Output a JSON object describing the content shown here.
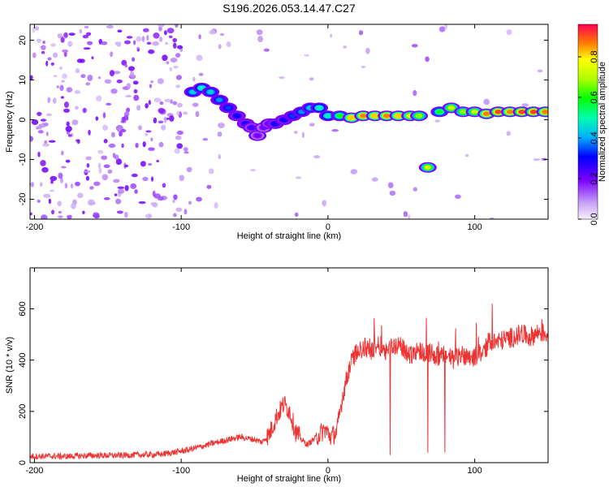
{
  "title": "S196.2026.053.14.47.C27",
  "chart_data": [
    {
      "type": "heatmap",
      "name": "spectrogram",
      "xlabel": "Height of straight line (km)",
      "ylabel": "Frequency (Hz)",
      "xlim": [
        -203,
        150
      ],
      "ylim": [
        -25,
        24
      ],
      "xticks": [
        -200,
        -100,
        0,
        100
      ],
      "yticks": [
        20,
        10,
        0,
        -10,
        -20
      ],
      "colorbar": {
        "label": "Normalized spectral amplitude",
        "range": [
          0,
          0.96
        ],
        "ticks": [
          0.0,
          0.2,
          0.4,
          0.6,
          0.8
        ]
      },
      "ridge": [
        {
          "x": -92,
          "y": 7
        },
        {
          "x": -86,
          "y": 8
        },
        {
          "x": -80,
          "y": 7
        },
        {
          "x": -74,
          "y": 5
        },
        {
          "x": -68,
          "y": 3
        },
        {
          "x": -62,
          "y": 1
        },
        {
          "x": -56,
          "y": -1
        },
        {
          "x": -52,
          "y": -2
        },
        {
          "x": -48,
          "y": -4
        },
        {
          "x": -44,
          "y": -2
        },
        {
          "x": -40,
          "y": -1
        },
        {
          "x": -36,
          "y": -1
        },
        {
          "x": -30,
          "y": 0
        },
        {
          "x": -24,
          "y": 1
        },
        {
          "x": -18,
          "y": 2
        },
        {
          "x": -12,
          "y": 3
        },
        {
          "x": -6,
          "y": 3
        },
        {
          "x": 0,
          "y": 1
        },
        {
          "x": 8,
          "y": 1
        },
        {
          "x": 16,
          "y": 0.5
        },
        {
          "x": 24,
          "y": 1
        },
        {
          "x": 32,
          "y": 1
        },
        {
          "x": 40,
          "y": 1
        },
        {
          "x": 48,
          "y": 1
        },
        {
          "x": 56,
          "y": 1
        },
        {
          "x": 62,
          "y": 1
        },
        {
          "x": 68,
          "y": -12
        },
        {
          "x": 76,
          "y": 2
        },
        {
          "x": 84,
          "y": 3
        },
        {
          "x": 92,
          "y": 2
        },
        {
          "x": 100,
          "y": 2
        },
        {
          "x": 108,
          "y": 1.5
        },
        {
          "x": 116,
          "y": 2
        },
        {
          "x": 124,
          "y": 2
        },
        {
          "x": 132,
          "y": 2
        },
        {
          "x": 140,
          "y": 2
        },
        {
          "x": 148,
          "y": 2
        }
      ],
      "ridge_amplitude": [
        0.45,
        0.5,
        0.45,
        0.4,
        0.35,
        0.3,
        0.3,
        0.25,
        0.2,
        0.2,
        0.25,
        0.3,
        0.3,
        0.35,
        0.4,
        0.45,
        0.5,
        0.5,
        0.6,
        0.85,
        0.9,
        0.85,
        0.9,
        0.85,
        0.8,
        0.7,
        0.75,
        0.6,
        0.75,
        0.7,
        0.75,
        0.9,
        0.95,
        0.9,
        0.95,
        0.95,
        0.9
      ]
    },
    {
      "type": "line",
      "name": "snr",
      "xlabel": "Height of straight line (km)",
      "ylabel": "SNR (10 * v/v)",
      "xlim": [
        -203,
        150
      ],
      "ylim": [
        0,
        760
      ],
      "xticks": [
        -200,
        -100,
        0,
        100
      ],
      "yticks": [
        0,
        200,
        400,
        600
      ],
      "series": [
        {
          "name": "SNR",
          "color": "#ee3333",
          "x": [
            -203,
            -190,
            -175,
            -160,
            -145,
            -130,
            -115,
            -105,
            -95,
            -85,
            -75,
            -68,
            -60,
            -55,
            -50,
            -45,
            -40,
            -35,
            -30,
            -26,
            -22,
            -18,
            -14,
            -10,
            -6,
            -2,
            2,
            6,
            10,
            14,
            16,
            18,
            22,
            26,
            30,
            34,
            40,
            46,
            50,
            56,
            60,
            66,
            70,
            76,
            80,
            86,
            90,
            96,
            100,
            104,
            108,
            110,
            114,
            120,
            126,
            132,
            138,
            144,
            150
          ],
          "y": [
            25,
            25,
            25,
            28,
            28,
            30,
            32,
            40,
            50,
            65,
            80,
            90,
            100,
            95,
            90,
            80,
            110,
            180,
            230,
            200,
            120,
            90,
            70,
            90,
            110,
            130,
            100,
            120,
            260,
            360,
            390,
            420,
            440,
            450,
            440,
            460,
            440,
            460,
            450,
            420,
            440,
            430,
            430,
            410,
            420,
            400,
            420,
            420,
            410,
            430,
            450,
            480,
            470,
            480,
            490,
            500,
            490,
            510,
            500
          ]
        }
      ]
    }
  ]
}
